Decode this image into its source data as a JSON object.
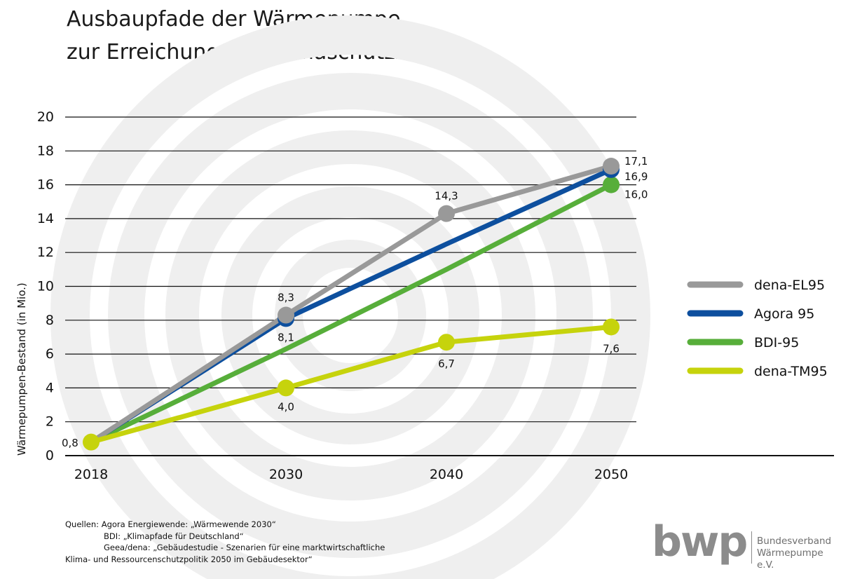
{
  "title": {
    "line1": "Ausbaupfade der Wärmepumpe",
    "line2": "zur Erreichung der Klimaschutzziele"
  },
  "colors": {
    "dena_el95": "#999999",
    "agora95": "#0d4f9e",
    "bdi95": "#57ae3a",
    "dena_tm95": "#c6d30c",
    "grid": "#111111",
    "watermark": "#efefef"
  },
  "chart_data": {
    "type": "line",
    "title": "Ausbaupfade der Wärmepumpe zur Erreichung der Klimaschutzziele",
    "xlabel": "",
    "ylabel": "Wärmepumpen-Bestand (in Mio.)",
    "ylim": [
      0,
      20
    ],
    "yticks": [
      "0",
      "2",
      "4",
      "6",
      "8",
      "10",
      "12",
      "14",
      "16",
      "18",
      "20"
    ],
    "x": [
      2018,
      2030,
      2040,
      2050
    ],
    "xtick_labels": [
      "2018",
      "2030",
      "2040",
      "2050"
    ],
    "grid": true,
    "legend_position": "right",
    "start_label": "0,8",
    "series": [
      {
        "key": "dena_el95",
        "name": "dena-EL95",
        "values": [
          0.8,
          8.3,
          14.3,
          17.1
        ],
        "markers": [
          false,
          true,
          true,
          true
        ],
        "labels": [
          "",
          "8,3",
          "14,3",
          "17,1"
        ]
      },
      {
        "key": "agora95",
        "name": "Agora 95",
        "values": [
          0.8,
          8.1,
          12.5,
          16.9
        ],
        "markers": [
          false,
          true,
          false,
          true
        ],
        "labels": [
          "",
          "8,1",
          "",
          "16,9"
        ]
      },
      {
        "key": "bdi95",
        "name": "BDI-95",
        "values": [
          0.8,
          6.3,
          11.0,
          16.0
        ],
        "markers": [
          false,
          false,
          false,
          true
        ],
        "labels": [
          "",
          "",
          "",
          "16,0"
        ]
      },
      {
        "key": "dena_tm95",
        "name": "dena-TM95",
        "values": [
          0.8,
          4.0,
          6.7,
          7.6
        ],
        "markers": [
          true,
          true,
          true,
          true
        ],
        "labels": [
          "",
          "4,0",
          "6,7",
          "7,6"
        ]
      }
    ]
  },
  "sources": {
    "prefix": "Quellen:",
    "line1": "Agora Energiewende: „Wärmewende 2030“",
    "line2": "BDI: „Klimapfade für Deutschland“",
    "line3": "Geea/dena: „Gebäudestudie - Szenarien für eine marktwirtschaftliche",
    "line4": "Klima- und Ressourcenschutzpolitik 2050 im Gebäudesektor“"
  },
  "logo": {
    "mark": "bwp",
    "line1": "Bundesverband",
    "line2": "Wärmepumpe e.V."
  }
}
